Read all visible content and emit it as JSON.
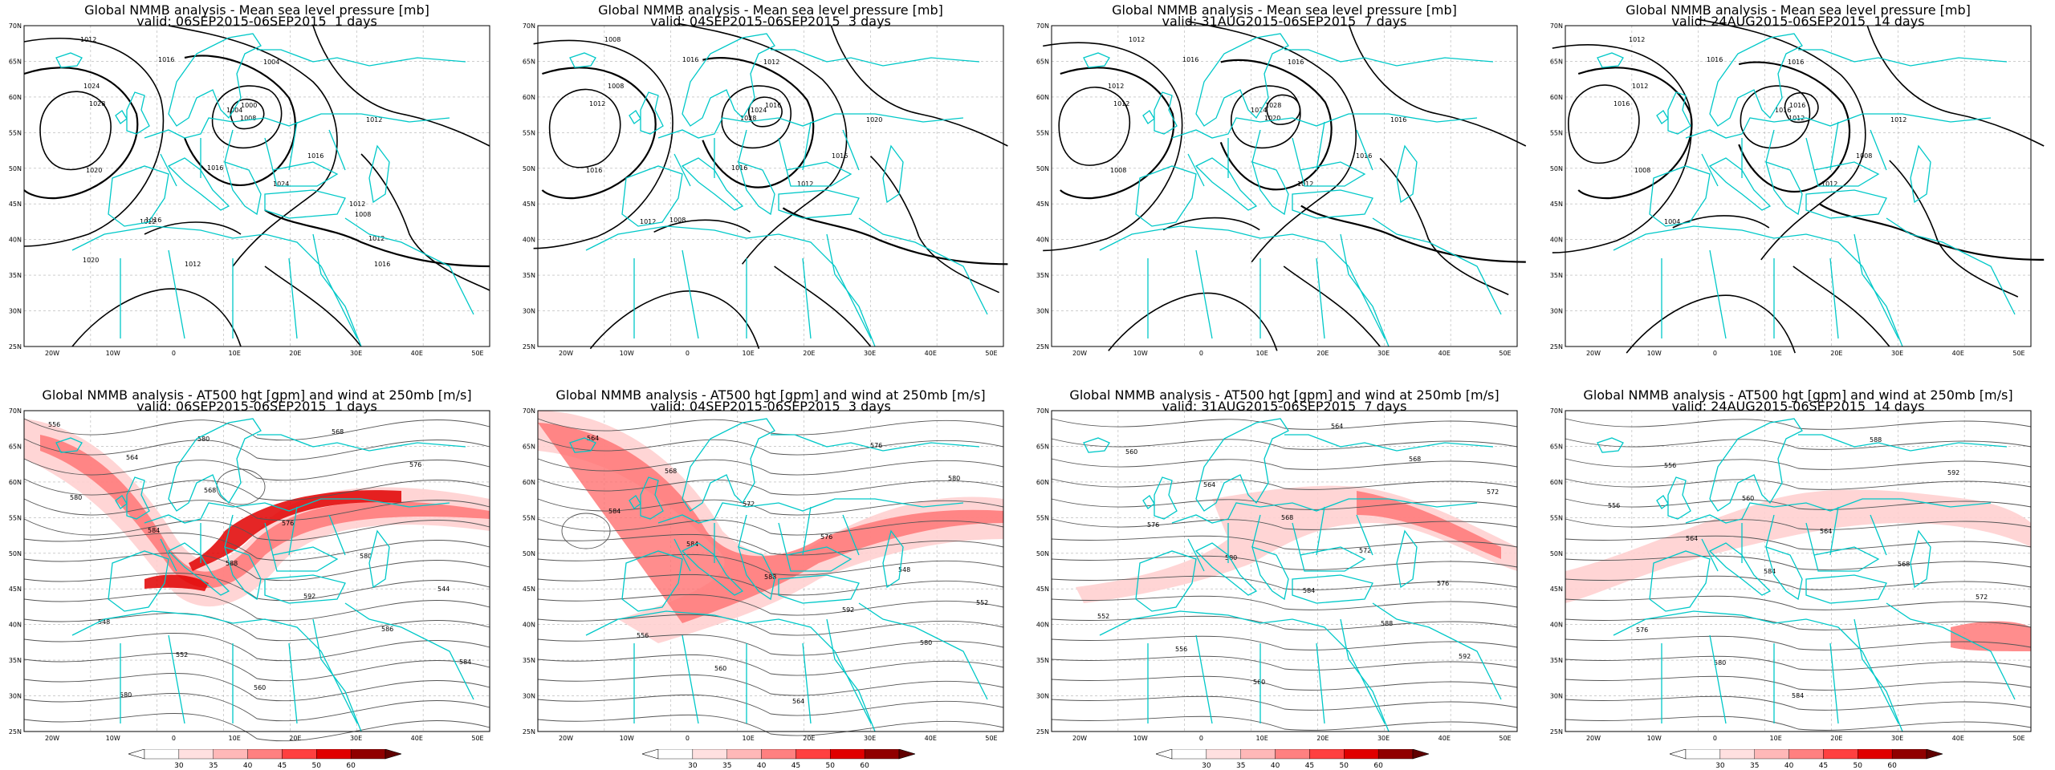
{
  "colors": {
    "coast": "#00c8c8",
    "contour": "#000000",
    "jet_low": "#ffd0d0",
    "jet_mid": "#ff7070",
    "jet_high": "#e00000",
    "grid": "#b0b0b0"
  },
  "axes": {
    "lat_labels": [
      "70N",
      "65N",
      "60N",
      "55N",
      "50N",
      "45N",
      "40N",
      "35N",
      "30N",
      "25N"
    ],
    "lon_labels": [
      "20W",
      "10W",
      "0",
      "10E",
      "20E",
      "30E",
      "40E",
      "50E"
    ]
  },
  "colorbar": {
    "ticks": [
      "30",
      "35",
      "40",
      "45",
      "50",
      "60"
    ]
  },
  "panels": [
    {
      "title": "Global NMMB analysis - Mean sea level pressure [mb]",
      "subtitle": "valid: 06SEP2015-06SEP2015  1 days",
      "type": "mslp",
      "labels": [
        "1012",
        "1016",
        "1024",
        "1028",
        "1004",
        "1000",
        "1004",
        "1008",
        "1012",
        "1016",
        "1024",
        "1020",
        "1012",
        "1016",
        "1016",
        "1012",
        "1008",
        "1012",
        "1016",
        "1020",
        "1012"
      ]
    },
    {
      "title": "Global NMMB analysis - Mean sea level pressure [mb]",
      "subtitle": "valid: 04SEP2015-06SEP2015  3 days",
      "type": "mslp",
      "labels": [
        "1008",
        "1016",
        "1008",
        "1012",
        "1012",
        "1016",
        "1024",
        "1028",
        "1020",
        "1016",
        "1012",
        "1016",
        "1012",
        "1008",
        "1016"
      ]
    },
    {
      "title": "Global NMMB analysis - Mean sea level pressure [mb]",
      "subtitle": "valid: 31AUG2015-06SEP2015  7 days",
      "type": "mslp",
      "labels": [
        "1012",
        "1016",
        "1012",
        "1012",
        "1016",
        "1028",
        "1024",
        "1020",
        "1016",
        "1016",
        "1012",
        "1008"
      ]
    },
    {
      "title": "Global NMMB analysis - Mean sea level pressure [mb]",
      "subtitle": "valid: 24AUG2015-06SEP2015  14 days",
      "type": "mslp",
      "labels": [
        "1012",
        "1016",
        "1012",
        "1016",
        "1016",
        "1016",
        "1016",
        "1012",
        "1012",
        "1008",
        "1012",
        "1008",
        "1004"
      ]
    },
    {
      "title": "Global NMMB analysis - AT500 hgt [gpm] and wind at 250mb [m/s]",
      "subtitle": "valid: 06SEP2015-06SEP2015  1 days",
      "type": "z500",
      "labels": [
        "556",
        "564",
        "568",
        "576",
        "580",
        "544",
        "548",
        "552",
        "560",
        "568",
        "576",
        "580",
        "584",
        "588",
        "592",
        "586",
        "584",
        "580",
        "580"
      ]
    },
    {
      "title": "Global NMMB analysis - AT500 hgt [gpm] and wind at 250mb [m/s]",
      "subtitle": "valid: 04SEP2015-06SEP2015  3 days",
      "type": "z500",
      "labels": [
        "564",
        "568",
        "572",
        "576",
        "548",
        "552",
        "556",
        "560",
        "564",
        "576",
        "580",
        "584",
        "584",
        "588",
        "592",
        "580"
      ]
    },
    {
      "title": "Global NMMB analysis - AT500 hgt [gpm] and wind at 250mb [m/s]",
      "subtitle": "valid: 31AUG2015-06SEP2015  7 days",
      "type": "z500",
      "labels": [
        "560",
        "564",
        "568",
        "572",
        "576",
        "552",
        "556",
        "560",
        "564",
        "568",
        "572",
        "576",
        "580",
        "584",
        "588",
        "592"
      ]
    },
    {
      "title": "Global NMMB analysis - AT500 hgt [gpm] and wind at 250mb [m/s]",
      "subtitle": "valid: 24AUG2015-06SEP2015  14 days",
      "type": "z500",
      "labels": [
        "556",
        "560",
        "564",
        "568",
        "572",
        "576",
        "580",
        "584",
        "588",
        "592",
        "556",
        "564",
        "584"
      ]
    }
  ]
}
